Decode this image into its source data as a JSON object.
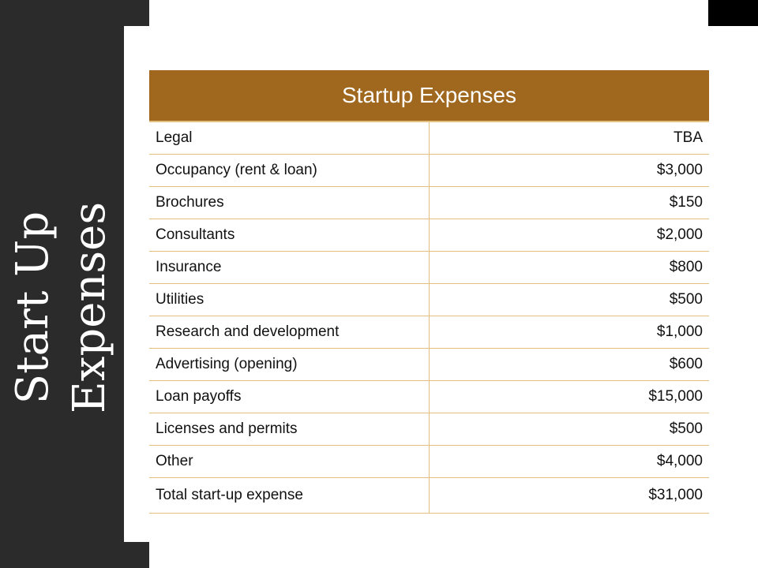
{
  "slide": {
    "title_line1": "Start Up",
    "title_line2": "Expenses"
  },
  "colors": {
    "header_bg": "#a0681f",
    "grid_line": "#e2bf7e",
    "side_panel": "#2b2b2b"
  },
  "table": {
    "header": "Startup Expenses",
    "rows": [
      {
        "item": "Legal",
        "amount": "TBA"
      },
      {
        "item": "Occupancy (rent & loan)",
        "amount": "$3,000"
      },
      {
        "item": "Brochures",
        "amount": "$150"
      },
      {
        "item": "Consultants",
        "amount": "$2,000"
      },
      {
        "item": "Insurance",
        "amount": "$800"
      },
      {
        "item": "Utilities",
        "amount": "$500"
      },
      {
        "item": "Research and development",
        "amount": "$1,000"
      },
      {
        "item": "Advertising (opening)",
        "amount": "$600"
      },
      {
        "item": "Loan payoffs",
        "amount": "$15,000"
      },
      {
        "item": "Licenses and permits",
        "amount": "$500"
      },
      {
        "item": "Other",
        "amount": "$4,000"
      }
    ],
    "total": {
      "item": "Total start-up expense",
      "amount": "$31,000"
    }
  }
}
